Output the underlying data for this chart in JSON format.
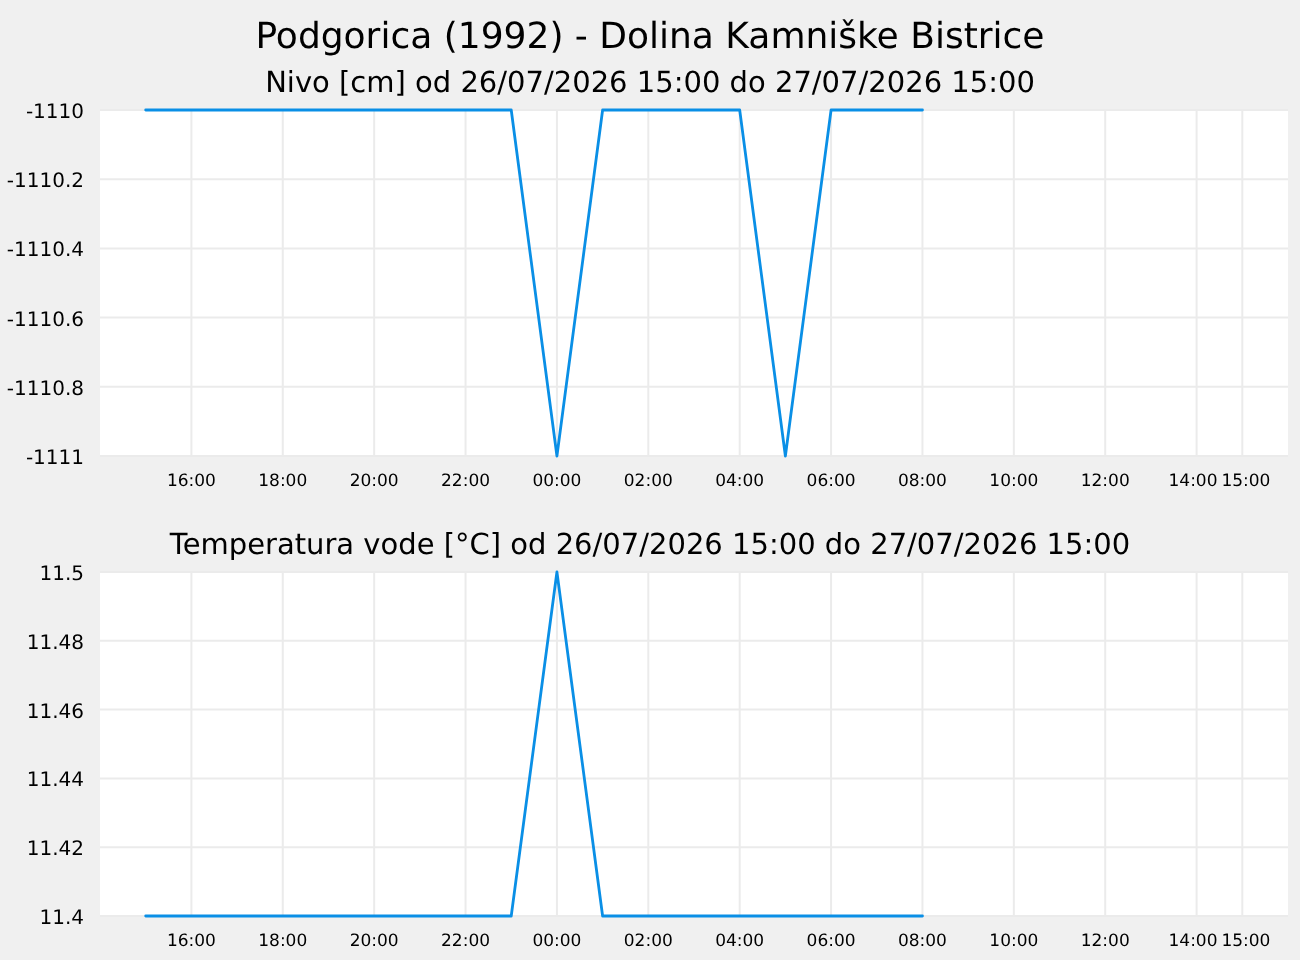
{
  "chart_data": [
    {
      "type": "line",
      "title": "Podgorica (1992) - Dolina Kamniške Bistrice",
      "subtitle": "Nivo [cm] od 26/07/2026 15:00 do 27/07/2026 15:00",
      "x": [
        "2026-07-26T15:00",
        "2026-07-26T16:00",
        "2026-07-26T17:00",
        "2026-07-26T18:00",
        "2026-07-26T19:00",
        "2026-07-26T20:00",
        "2026-07-26T21:00",
        "2026-07-26T22:00",
        "2026-07-26T23:00",
        "2026-07-27T00:00",
        "2026-07-27T01:00",
        "2026-07-27T02:00",
        "2026-07-27T03:00",
        "2026-07-27T04:00",
        "2026-07-27T05:00",
        "2026-07-27T06:00",
        "2026-07-27T07:00",
        "2026-07-27T08:00"
      ],
      "series": [
        {
          "color": "#0a8fe6",
          "values": [
            -1110,
            -1110,
            -1110,
            -1110,
            -1110,
            -1110,
            -1110,
            -1110,
            -1110,
            -1111,
            -1110,
            -1110,
            -1110,
            -1110,
            -1111,
            -1110,
            -1110,
            -1110
          ]
        }
      ],
      "xlim": [
        "2026-07-26T14:00",
        "2026-07-27T16:00"
      ],
      "xticks": [
        {
          "value": "2026-07-26T16:00",
          "label": "16:00"
        },
        {
          "value": "2026-07-26T18:00",
          "label": "18:00"
        },
        {
          "value": "2026-07-26T20:00",
          "label": "20:00"
        },
        {
          "value": "2026-07-26T22:00",
          "label": "22:00"
        },
        {
          "value": "2026-07-27T00:00",
          "label": "00:00"
        },
        {
          "value": "2026-07-27T02:00",
          "label": "02:00"
        },
        {
          "value": "2026-07-27T04:00",
          "label": "04:00"
        },
        {
          "value": "2026-07-27T06:00",
          "label": "06:00"
        },
        {
          "value": "2026-07-27T08:00",
          "label": "08:00"
        },
        {
          "value": "2026-07-27T10:00",
          "label": "10:00"
        },
        {
          "value": "2026-07-27T12:00",
          "label": "12:00"
        },
        {
          "value": "2026-07-27T14:00",
          "label": "14:00"
        },
        {
          "value": "2026-07-27T15:00",
          "label": "15:00"
        }
      ],
      "ylim": [
        -1111,
        -1110
      ],
      "yticks": [
        -1111,
        -1110.8,
        -1110.6,
        -1110.4,
        -1110.2,
        -1110
      ],
      "grid": true
    },
    {
      "type": "line",
      "subtitle": "Temperatura vode [°C] od 26/07/2026 15:00 do 27/07/2026 15:00",
      "x": [
        "2026-07-26T15:00",
        "2026-07-26T16:00",
        "2026-07-26T17:00",
        "2026-07-26T18:00",
        "2026-07-26T19:00",
        "2026-07-26T20:00",
        "2026-07-26T21:00",
        "2026-07-26T22:00",
        "2026-07-26T23:00",
        "2026-07-27T00:00",
        "2026-07-27T01:00",
        "2026-07-27T02:00",
        "2026-07-27T03:00",
        "2026-07-27T04:00",
        "2026-07-27T05:00",
        "2026-07-27T06:00",
        "2026-07-27T07:00",
        "2026-07-27T08:00"
      ],
      "series": [
        {
          "color": "#0a8fe6",
          "values": [
            11.4,
            11.4,
            11.4,
            11.4,
            11.4,
            11.4,
            11.4,
            11.4,
            11.4,
            11.5,
            11.4,
            11.4,
            11.4,
            11.4,
            11.4,
            11.4,
            11.4,
            11.4
          ]
        }
      ],
      "xlim": [
        "2026-07-26T14:00",
        "2026-07-27T16:00"
      ],
      "xticks": [
        {
          "value": "2026-07-26T16:00",
          "label": "16:00"
        },
        {
          "value": "2026-07-26T18:00",
          "label": "18:00"
        },
        {
          "value": "2026-07-26T20:00",
          "label": "20:00"
        },
        {
          "value": "2026-07-26T22:00",
          "label": "22:00"
        },
        {
          "value": "2026-07-27T00:00",
          "label": "00:00"
        },
        {
          "value": "2026-07-27T02:00",
          "label": "02:00"
        },
        {
          "value": "2026-07-27T04:00",
          "label": "04:00"
        },
        {
          "value": "2026-07-27T06:00",
          "label": "06:00"
        },
        {
          "value": "2026-07-27T08:00",
          "label": "08:00"
        },
        {
          "value": "2026-07-27T10:00",
          "label": "10:00"
        },
        {
          "value": "2026-07-27T12:00",
          "label": "12:00"
        },
        {
          "value": "2026-07-27T14:00",
          "label": "14:00"
        },
        {
          "value": "2026-07-27T15:00",
          "label": "15:00"
        }
      ],
      "ylim": [
        11.4,
        11.5
      ],
      "yticks": [
        11.4,
        11.42,
        11.44,
        11.46,
        11.48,
        11.5
      ],
      "grid": true
    }
  ]
}
